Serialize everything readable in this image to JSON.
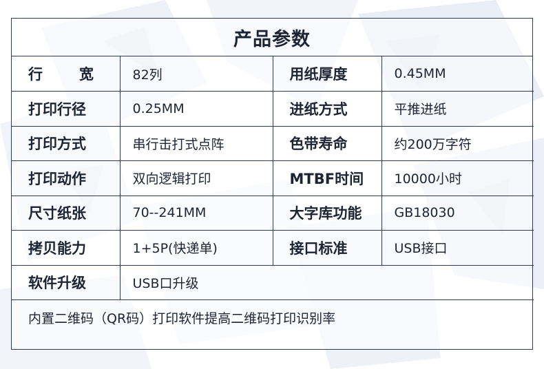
{
  "title": "产品参数",
  "rows": [
    {
      "l1": "行宽",
      "l1a": "行",
      "l1b": "宽",
      "v1": "82列",
      "l2": "用纸厚度",
      "v2": "0.45MM"
    },
    {
      "l1": "打印行径",
      "v1": "0.25MM",
      "l2": "进纸方式",
      "v2": "平推进纸"
    },
    {
      "l1": "打印方式",
      "v1": "串行击打式点阵",
      "l2": "色带寿命",
      "v2": "约200万字符"
    },
    {
      "l1": "打印动作",
      "v1": "双向逻辑打印",
      "l2": "MTBF时间",
      "v2": "10000小时"
    },
    {
      "l1": "尺寸纸张",
      "v1": "70--241MM",
      "l2": "大字库功能",
      "v2": "GB18030"
    },
    {
      "l1": "拷贝能力",
      "v1": "1+5P(快递单)",
      "l2": "接口标准",
      "v2": "USB接口"
    }
  ],
  "upgrade": {
    "label": "软件升级",
    "value": "USB口升级"
  },
  "footer": "内置二维码（QR码）打印软件提高二维码打印识别率",
  "colors": {
    "border": "#2b3a57",
    "text": "#1c2333",
    "bg_light": "#eef1f8",
    "bg_shard": "#dfe4f0"
  }
}
